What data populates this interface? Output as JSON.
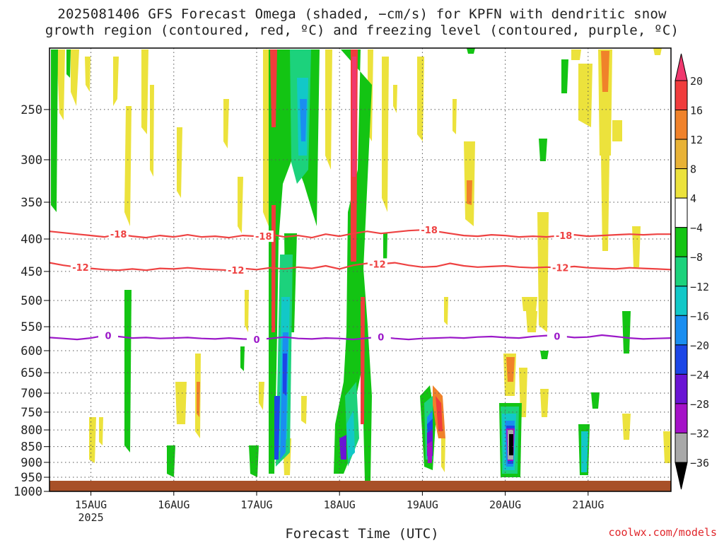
{
  "title_line1": "2025081406 GFS Forecast Omega (shaded, −cm/s) for KPFN with dendritic snow",
  "title_line2": "growth region (contoured, red, ºC) and freezing level (contoured, purple, ºC)",
  "credit": "coolwx.com/models",
  "chart_data": {
    "type": "heatmap",
    "xlabel": "Forecast Time (UTC)",
    "x_ticks": [
      {
        "label": "15AUG",
        "sub": "2025",
        "hours": 18
      },
      {
        "label": "16AUG",
        "sub": "",
        "hours": 42
      },
      {
        "label": "17AUG",
        "sub": "",
        "hours": 66
      },
      {
        "label": "18AUG",
        "sub": "",
        "hours": 90
      },
      {
        "label": "19AUG",
        "sub": "",
        "hours": 114
      },
      {
        "label": "20AUG",
        "sub": "",
        "hours": 138
      },
      {
        "label": "21AUG",
        "sub": "",
        "hours": 162
      }
    ],
    "x_range_hours": [
      6,
      186
    ],
    "y_ticks": [
      250,
      300,
      350,
      400,
      450,
      500,
      550,
      600,
      650,
      700,
      750,
      800,
      850,
      900,
      950,
      1000
    ],
    "y_range_hpa": [
      200,
      1000
    ],
    "y_scale": "log-pressure",
    "colorbar": {
      "labels": [
        "20",
        "16",
        "12",
        "8",
        "4",
        "−4",
        "−8",
        "−12",
        "−16",
        "−20",
        "−24",
        "−28",
        "−32",
        "−36"
      ],
      "colors": [
        "#f0386e",
        "#f03c3c",
        "#f0822a",
        "#e8b236",
        "#ece23c",
        "#ffffff",
        "#13c413",
        "#1cd27c",
        "#12c8c8",
        "#1a8ef0",
        "#1c46e6",
        "#6a14d4",
        "#a512c8",
        "#a8a8a8",
        "#000000"
      ]
    },
    "contours": [
      {
        "level": "-18",
        "color": "#ee4242",
        "points": [
          [
            6,
            389
          ],
          [
            10,
            391
          ],
          [
            14,
            393
          ],
          [
            18,
            395
          ],
          [
            22,
            397
          ],
          [
            26,
            393
          ],
          [
            30,
            396
          ],
          [
            34,
            398
          ],
          [
            38,
            395
          ],
          [
            42,
            397
          ],
          [
            46,
            394
          ],
          [
            50,
            397
          ],
          [
            54,
            396
          ],
          [
            58,
            398
          ],
          [
            62,
            395
          ],
          [
            66,
            396
          ],
          [
            70,
            393
          ],
          [
            74,
            397
          ],
          [
            78,
            395
          ],
          [
            82,
            398
          ],
          [
            86,
            393
          ],
          [
            90,
            396
          ],
          [
            94,
            392
          ],
          [
            98,
            389
          ],
          [
            102,
            392
          ],
          [
            106,
            390
          ],
          [
            110,
            388
          ],
          [
            114,
            387
          ],
          [
            118,
            389
          ],
          [
            122,
            392
          ],
          [
            126,
            395
          ],
          [
            130,
            396
          ],
          [
            134,
            394
          ],
          [
            138,
            395
          ],
          [
            142,
            397
          ],
          [
            146,
            396
          ],
          [
            150,
            397
          ],
          [
            154,
            395
          ],
          [
            158,
            394
          ],
          [
            162,
            396
          ],
          [
            166,
            395
          ],
          [
            170,
            394
          ],
          [
            174,
            393
          ],
          [
            178,
            394
          ],
          [
            182,
            393
          ],
          [
            186,
            393
          ]
        ],
        "label_hours": [
          26,
          68,
          116,
          155
        ]
      },
      {
        "level": "-12",
        "color": "#ee4242",
        "points": [
          [
            6,
            436
          ],
          [
            10,
            440
          ],
          [
            14,
            443
          ],
          [
            18,
            445
          ],
          [
            22,
            447
          ],
          [
            26,
            448
          ],
          [
            30,
            446
          ],
          [
            34,
            448
          ],
          [
            38,
            445
          ],
          [
            42,
            446
          ],
          [
            46,
            444
          ],
          [
            50,
            446
          ],
          [
            54,
            447
          ],
          [
            58,
            448
          ],
          [
            62,
            445
          ],
          [
            66,
            447
          ],
          [
            70,
            444
          ],
          [
            74,
            446
          ],
          [
            78,
            443
          ],
          [
            82,
            445
          ],
          [
            86,
            441
          ],
          [
            90,
            446
          ],
          [
            94,
            440
          ],
          [
            98,
            437
          ],
          [
            102,
            438
          ],
          [
            106,
            436
          ],
          [
            110,
            440
          ],
          [
            114,
            443
          ],
          [
            118,
            442
          ],
          [
            122,
            437
          ],
          [
            126,
            441
          ],
          [
            130,
            443
          ],
          [
            134,
            442
          ],
          [
            138,
            441
          ],
          [
            142,
            443
          ],
          [
            146,
            444
          ],
          [
            150,
            443
          ],
          [
            154,
            444
          ],
          [
            158,
            442
          ],
          [
            162,
            444
          ],
          [
            166,
            445
          ],
          [
            170,
            446
          ],
          [
            174,
            444
          ],
          [
            178,
            445
          ],
          [
            182,
            446
          ],
          [
            186,
            447
          ]
        ],
        "label_hours": [
          15,
          60,
          101,
          154
        ]
      },
      {
        "level": "0",
        "color": "#9b18c8",
        "points": [
          [
            6,
            572
          ],
          [
            10,
            574
          ],
          [
            14,
            576
          ],
          [
            18,
            573
          ],
          [
            22,
            568
          ],
          [
            26,
            570
          ],
          [
            30,
            573
          ],
          [
            34,
            572
          ],
          [
            38,
            574
          ],
          [
            42,
            573
          ],
          [
            46,
            572
          ],
          [
            50,
            574
          ],
          [
            54,
            575
          ],
          [
            58,
            573
          ],
          [
            62,
            575
          ],
          [
            66,
            576
          ],
          [
            70,
            574
          ],
          [
            74,
            571
          ],
          [
            78,
            574
          ],
          [
            82,
            575
          ],
          [
            86,
            573
          ],
          [
            90,
            574
          ],
          [
            94,
            576
          ],
          [
            98,
            573
          ],
          [
            102,
            571
          ],
          [
            106,
            574
          ],
          [
            110,
            576
          ],
          [
            114,
            574
          ],
          [
            118,
            573
          ],
          [
            122,
            572
          ],
          [
            126,
            573
          ],
          [
            130,
            571
          ],
          [
            134,
            570
          ],
          [
            138,
            572
          ],
          [
            142,
            573
          ],
          [
            146,
            570
          ],
          [
            150,
            568
          ],
          [
            154,
            569
          ],
          [
            158,
            572
          ],
          [
            162,
            571
          ],
          [
            166,
            567
          ],
          [
            170,
            570
          ],
          [
            174,
            573
          ],
          [
            178,
            575
          ],
          [
            182,
            574
          ],
          [
            186,
            573
          ]
        ],
        "label_hours": [
          23,
          66,
          102,
          153
        ]
      }
    ]
  }
}
